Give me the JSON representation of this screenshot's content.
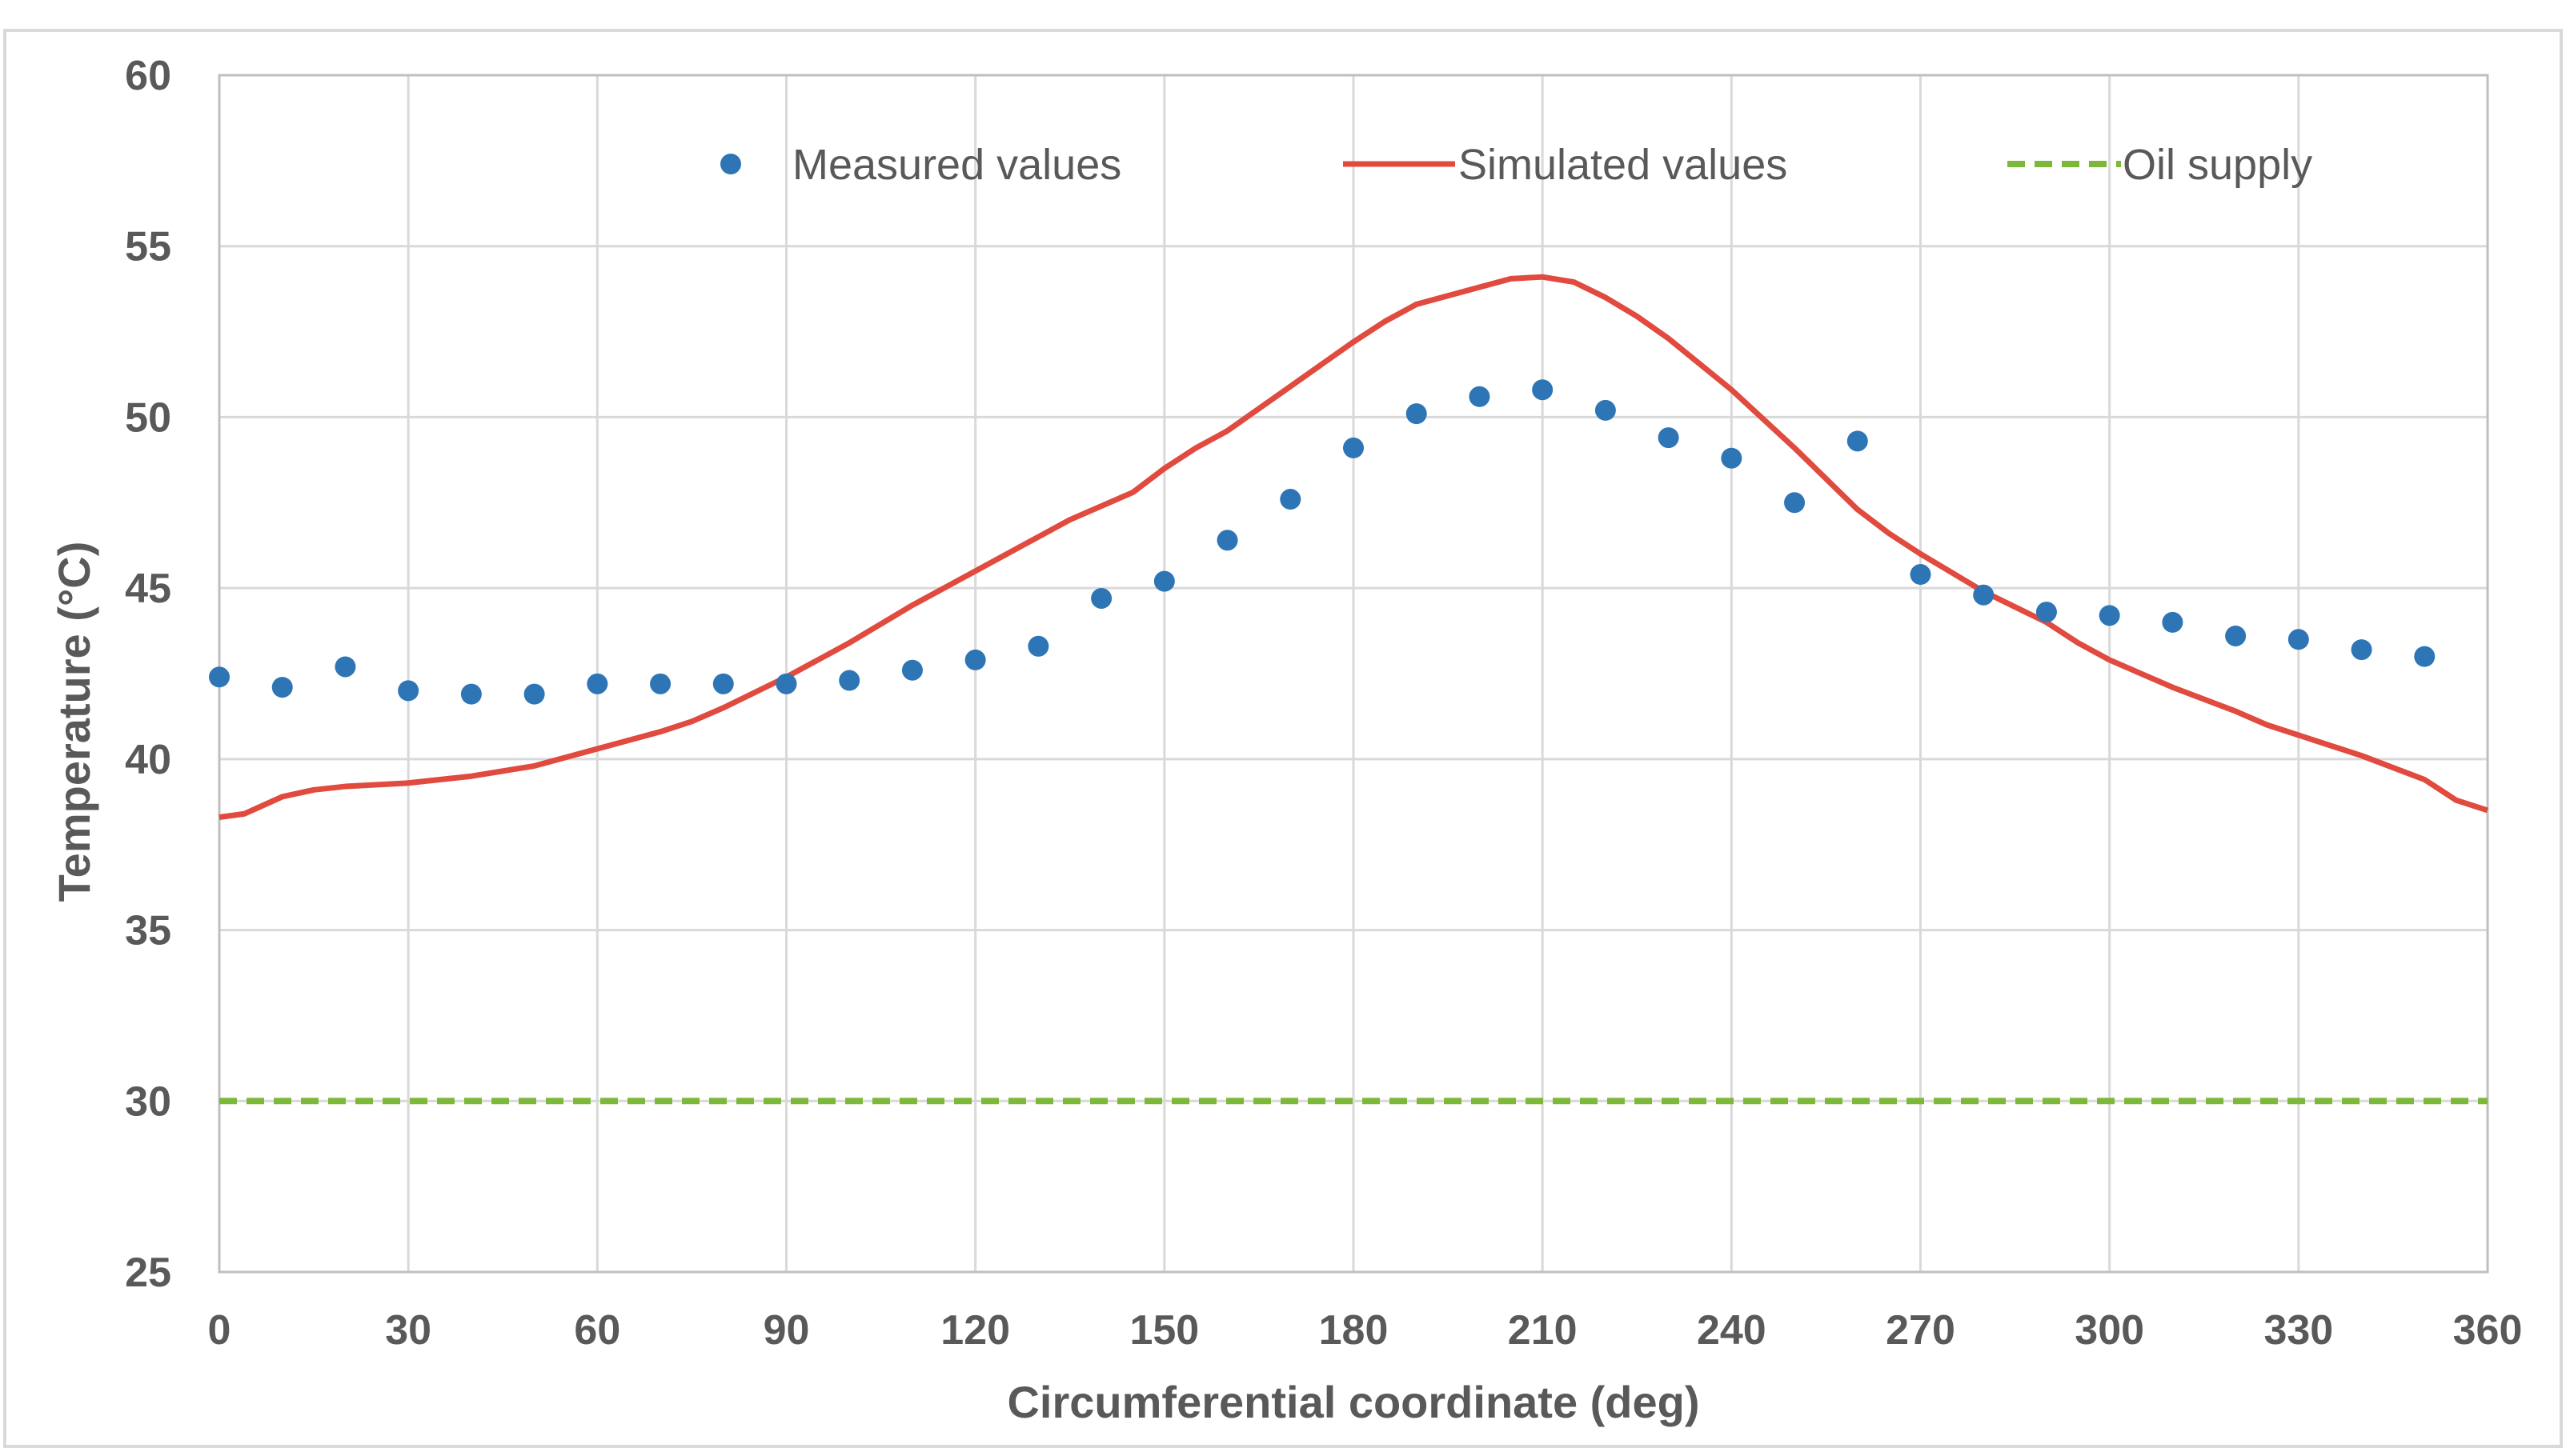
{
  "chart_data": {
    "type": "line",
    "title": "",
    "xlabel": "Circumferential coordinate (deg)",
    "ylabel": "Temperature (°C)",
    "xlim": [
      0,
      360
    ],
    "ylim": [
      25,
      60
    ],
    "xticks": [
      0,
      30,
      60,
      90,
      120,
      150,
      180,
      210,
      240,
      270,
      300,
      330,
      360
    ],
    "yticks": [
      25,
      30,
      35,
      40,
      45,
      50,
      55,
      60
    ],
    "grid": true,
    "legend_position": "top",
    "series": [
      {
        "name": "Measured values",
        "style": "markers",
        "color": "#2E75B6",
        "x": [
          0,
          10,
          20,
          30,
          40,
          50,
          60,
          70,
          80,
          90,
          100,
          110,
          120,
          130,
          140,
          150,
          160,
          170,
          180,
          190,
          200,
          210,
          220,
          230,
          240,
          250,
          260,
          270,
          280,
          290,
          300,
          310,
          320,
          330,
          340,
          350
        ],
        "values": [
          42.4,
          42.1,
          42.7,
          42.0,
          41.9,
          41.9,
          42.2,
          42.2,
          42.2,
          42.2,
          42.3,
          42.6,
          42.9,
          43.3,
          44.7,
          45.2,
          46.4,
          47.6,
          49.1,
          50.1,
          50.6,
          50.8,
          50.2,
          49.4,
          48.8,
          47.5,
          49.3,
          45.4,
          44.8,
          44.3,
          44.2,
          44.0,
          43.6,
          43.5,
          43.2,
          43.0
        ]
      },
      {
        "name": "Simulated values",
        "style": "line",
        "color": "#E04A3F",
        "x": [
          0,
          4,
          10,
          15,
          20,
          30,
          40,
          50,
          60,
          70,
          75,
          80,
          90,
          95,
          100,
          110,
          120,
          130,
          135,
          145,
          150,
          155,
          160,
          170,
          180,
          185,
          190,
          200,
          205,
          210,
          215,
          220,
          225,
          230,
          240,
          250,
          260,
          265,
          270,
          280,
          290,
          295,
          300,
          310,
          320,
          325,
          330,
          340,
          350,
          355,
          360
        ],
        "values": [
          38.3,
          38.4,
          38.9,
          39.1,
          39.2,
          39.3,
          39.5,
          39.8,
          40.3,
          40.8,
          41.1,
          41.5,
          42.4,
          42.9,
          43.4,
          44.5,
          45.5,
          46.5,
          47.0,
          47.8,
          48.5,
          49.1,
          49.6,
          50.9,
          52.2,
          52.8,
          53.3,
          53.8,
          54.05,
          54.1,
          53.95,
          53.5,
          52.95,
          52.3,
          50.8,
          49.1,
          47.3,
          46.6,
          46.0,
          44.9,
          44.0,
          43.4,
          42.9,
          42.1,
          41.4,
          41.0,
          40.7,
          40.1,
          39.4,
          38.8,
          38.5
        ]
      },
      {
        "name": "Oil supply",
        "style": "dashed",
        "color": "#7DB83A",
        "x": [
          0,
          360
        ],
        "values": [
          30,
          30
        ]
      }
    ]
  }
}
